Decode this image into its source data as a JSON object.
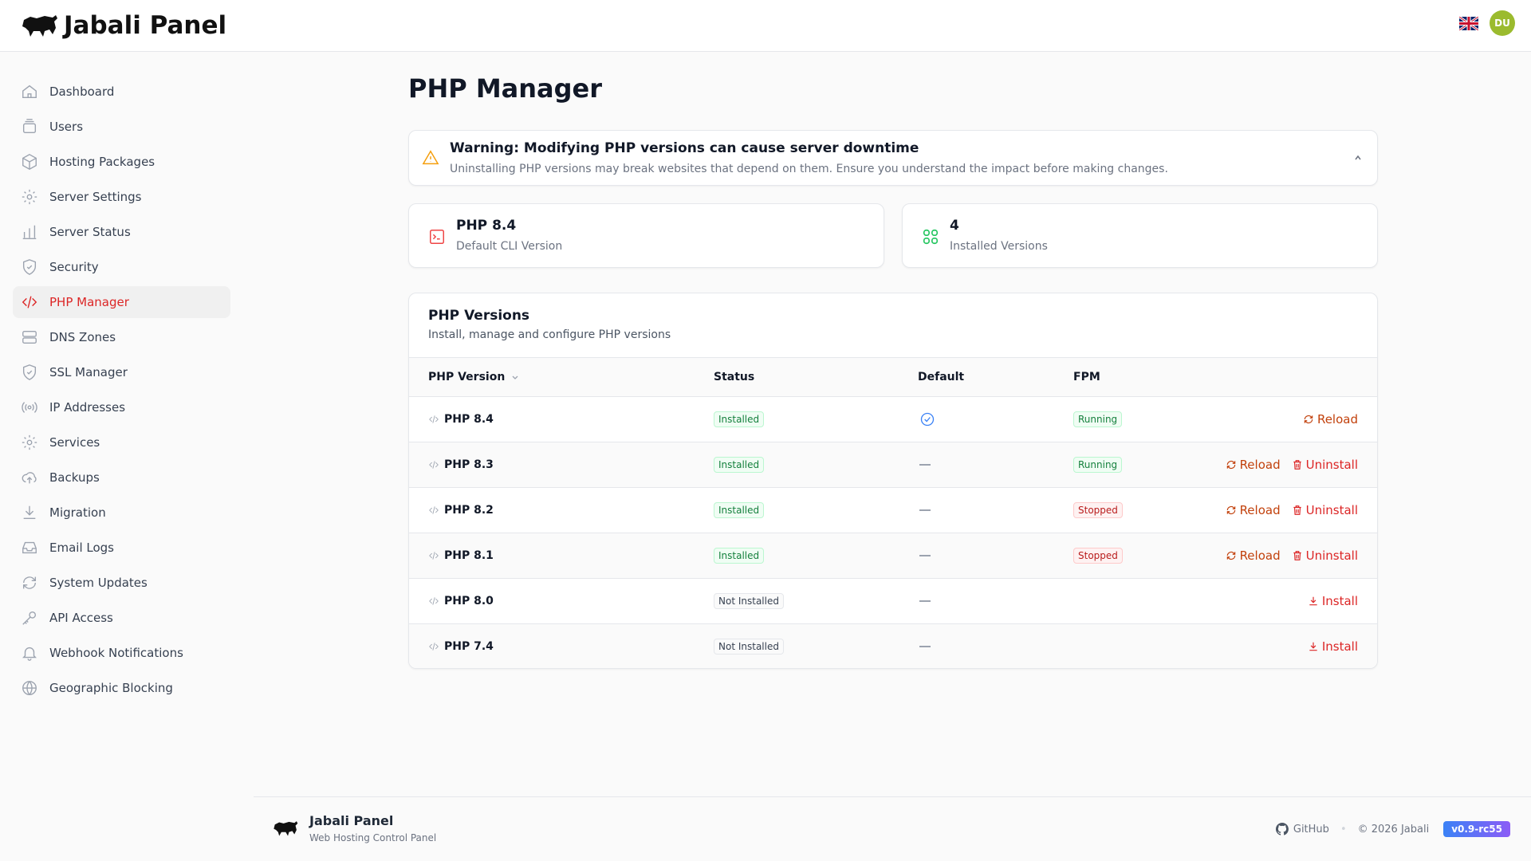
{
  "header": {
    "brand": "Jabali Panel",
    "avatar": "DU",
    "language": "en-GB"
  },
  "sidebar": {
    "items": [
      {
        "label": "Dashboard",
        "icon": "home-icon"
      },
      {
        "label": "Users",
        "icon": "users-icon"
      },
      {
        "label": "Hosting Packages",
        "icon": "package-icon"
      },
      {
        "label": "Server Settings",
        "icon": "gear-icon"
      },
      {
        "label": "Server Status",
        "icon": "bar-chart-icon"
      },
      {
        "label": "Security",
        "icon": "shield-icon"
      },
      {
        "label": "PHP Manager",
        "icon": "code-icon",
        "active": true
      },
      {
        "label": "DNS Zones",
        "icon": "server-icon"
      },
      {
        "label": "SSL Manager",
        "icon": "shield-check-icon"
      },
      {
        "label": "IP Addresses",
        "icon": "signal-icon"
      },
      {
        "label": "Services",
        "icon": "gear-icon"
      },
      {
        "label": "Backups",
        "icon": "cloud-upload-icon"
      },
      {
        "label": "Migration",
        "icon": "download-icon"
      },
      {
        "label": "Email Logs",
        "icon": "inbox-icon"
      },
      {
        "label": "System Updates",
        "icon": "refresh-icon"
      },
      {
        "label": "API Access",
        "icon": "key-icon"
      },
      {
        "label": "Webhook Notifications",
        "icon": "bell-icon"
      },
      {
        "label": "Geographic Blocking",
        "icon": "globe-icon"
      }
    ]
  },
  "page": {
    "title": "PHP Manager"
  },
  "warning": {
    "title": "Warning: Modifying PHP versions can cause server downtime",
    "text": "Uninstalling PHP versions may break websites that depend on them. Ensure you understand the impact before making changes."
  },
  "stats": [
    {
      "value": "PHP 8.4",
      "label": "Default CLI Version"
    },
    {
      "value": "4",
      "label": "Installed Versions"
    }
  ],
  "table": {
    "title": "PHP Versions",
    "subtitle": "Install, manage and configure PHP versions",
    "columns": [
      "PHP Version",
      "Status",
      "Default",
      "FPM"
    ],
    "rows": [
      {
        "version": "PHP 8.4",
        "status": "Installed",
        "default": true,
        "fpm": "Running",
        "actions": [
          "Reload"
        ]
      },
      {
        "version": "PHP 8.3",
        "status": "Installed",
        "default": false,
        "fpm": "Running",
        "actions": [
          "Reload",
          "Uninstall"
        ]
      },
      {
        "version": "PHP 8.2",
        "status": "Installed",
        "default": false,
        "fpm": "Stopped",
        "actions": [
          "Reload",
          "Uninstall"
        ]
      },
      {
        "version": "PHP 8.1",
        "status": "Installed",
        "default": false,
        "fpm": "Stopped",
        "actions": [
          "Reload",
          "Uninstall"
        ]
      },
      {
        "version": "PHP 8.0",
        "status": "Not Installed",
        "default": false,
        "fpm": "",
        "actions": [
          "Install"
        ]
      },
      {
        "version": "PHP 7.4",
        "status": "Not Installed",
        "default": false,
        "fpm": "",
        "actions": [
          "Install"
        ]
      }
    ]
  },
  "footer": {
    "brand": "Jabali Panel",
    "tagline": "Web Hosting Control Panel",
    "github": "GitHub",
    "copyright": "© 2026 Jabali",
    "version": "v0.9-rc55"
  },
  "colors": {
    "accent": "#dc2626",
    "reload": "#c2410c",
    "success": "#15803d",
    "default_check": "#3b82f6"
  }
}
